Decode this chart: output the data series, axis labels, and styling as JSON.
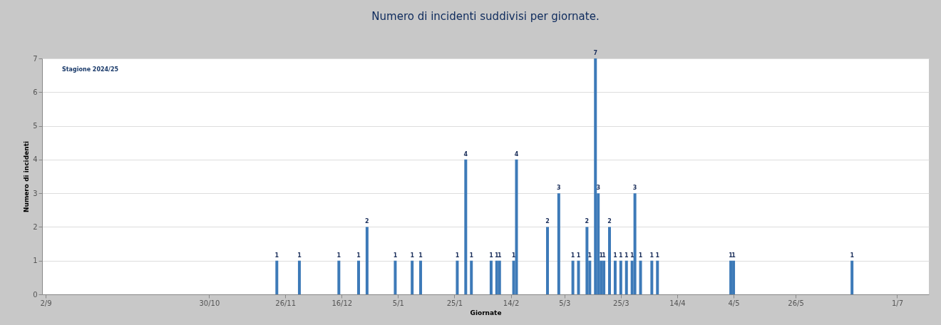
{
  "chart_data": {
    "type": "bar",
    "title": "Numero di incidenti suddivisi per giornate.",
    "xlabel": "Giornate",
    "ylabel": "Numero di incidenti",
    "annotations": [
      "Stagione 2024/25"
    ],
    "x": [
      "2024-11-23",
      "2024-12-01",
      "2024-12-15",
      "2024-12-22",
      "2024-12-25",
      "2025-01-04",
      "2025-01-10",
      "2025-01-13",
      "2025-01-26",
      "2025-01-29",
      "2025-01-31",
      "2025-02-07",
      "2025-02-09",
      "2025-02-10",
      "2025-02-15",
      "2025-02-16",
      "2025-02-27",
      "2025-03-03",
      "2025-03-08",
      "2025-03-10",
      "2025-03-13",
      "2025-03-14",
      "2025-03-16",
      "2025-03-17",
      "2025-03-18",
      "2025-03-19",
      "2025-03-21",
      "2025-03-23",
      "2025-03-25",
      "2025-03-27",
      "2025-03-29",
      "2025-03-30",
      "2025-04-01",
      "2025-04-05",
      "2025-04-07",
      "2025-05-03",
      "2025-05-04",
      "2025-06-15"
    ],
    "values": [
      1,
      1,
      1,
      1,
      2,
      1,
      1,
      1,
      1,
      4,
      1,
      1,
      1,
      1,
      1,
      4,
      2,
      3,
      1,
      1,
      2,
      1,
      7,
      3,
      1,
      1,
      2,
      1,
      1,
      1,
      1,
      3,
      1,
      1,
      1,
      1,
      1,
      1
    ],
    "color": "#3d7ab8",
    "xlim": [
      "2024-09-02",
      "2025-07-11"
    ],
    "xticks": [
      {
        "value": "2024-09-02",
        "label": "2/9"
      },
      {
        "value": "2024-10-30",
        "label": "30/10"
      },
      {
        "value": "2024-11-26",
        "label": "26/11"
      },
      {
        "value": "2024-12-16",
        "label": "16/12"
      },
      {
        "value": "2025-01-05",
        "label": "5/1"
      },
      {
        "value": "2025-01-25",
        "label": "25/1"
      },
      {
        "value": "2025-02-14",
        "label": "14/2"
      },
      {
        "value": "2025-03-05",
        "label": "5/3"
      },
      {
        "value": "2025-03-25",
        "label": "25/3"
      },
      {
        "value": "2025-04-14",
        "label": "14/4"
      },
      {
        "value": "2025-05-04",
        "label": "4/5"
      },
      {
        "value": "2025-05-26",
        "label": "26/5"
      },
      {
        "value": "2025-07-01",
        "label": "1/7"
      }
    ],
    "ylim": [
      0,
      7
    ],
    "yticks": [
      0,
      1,
      2,
      3,
      4,
      5,
      6,
      7
    ],
    "grid": "y",
    "data_labels": true
  }
}
